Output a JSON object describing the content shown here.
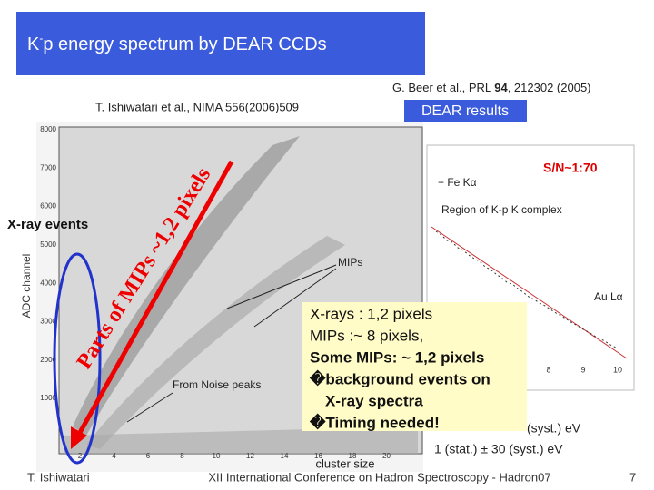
{
  "header": {
    "title_k": "K",
    "title_sup": "-",
    "title_rest": "p energy spectrum by DEAR CCDs"
  },
  "references": {
    "left": "T. Ishiwatari et al., NIMA 556(2006)509",
    "right_before": "G. Beer et al., PRL ",
    "right_bold": "94",
    "right_after": ", 212302 (2005)",
    "results_label": "DEAR results"
  },
  "left_plot": {
    "y_label": "ADC channel",
    "x_label": "cluster size",
    "yticks": [
      "8000",
      "7000",
      "6000",
      "5000",
      "4000",
      "3000",
      "2000",
      "1000"
    ],
    "xticks": [
      "2",
      "4",
      "6",
      "8",
      "10",
      "12",
      "14",
      "16",
      "18",
      "20"
    ],
    "annotations": {
      "mips": "MIPs",
      "noise": "From Noise peaks"
    }
  },
  "overlays": {
    "xray_events": "X-ray events",
    "parts_of_mips": "Parts of MIPs ~1,2 pixels",
    "signal_noise": "S/N~1:70"
  },
  "right_plot": {
    "legend_fe": "+ Fe Kα",
    "region": "Region of K-p K complex",
    "au": "Au Lα",
    "xticks": [
      "8",
      "9",
      "10"
    ],
    "result_line_1": "(syst.) eV",
    "result_line_2": "1 (stat.) ± 30 (syst.) eV"
  },
  "text_box": {
    "lines": [
      "X-rays        : 1,2 pixels",
      "MIPs             :~ 8 pixels,",
      "Some MIPs: ~ 1,2 pixels",
      "�background events on",
      "X-ray spectra",
      "�Timing needed!"
    ]
  },
  "footer": {
    "author": "T. Ishiwatari",
    "conference": "XII International Conference on Hadron Spectroscopy - Hadron07",
    "page": "7"
  }
}
